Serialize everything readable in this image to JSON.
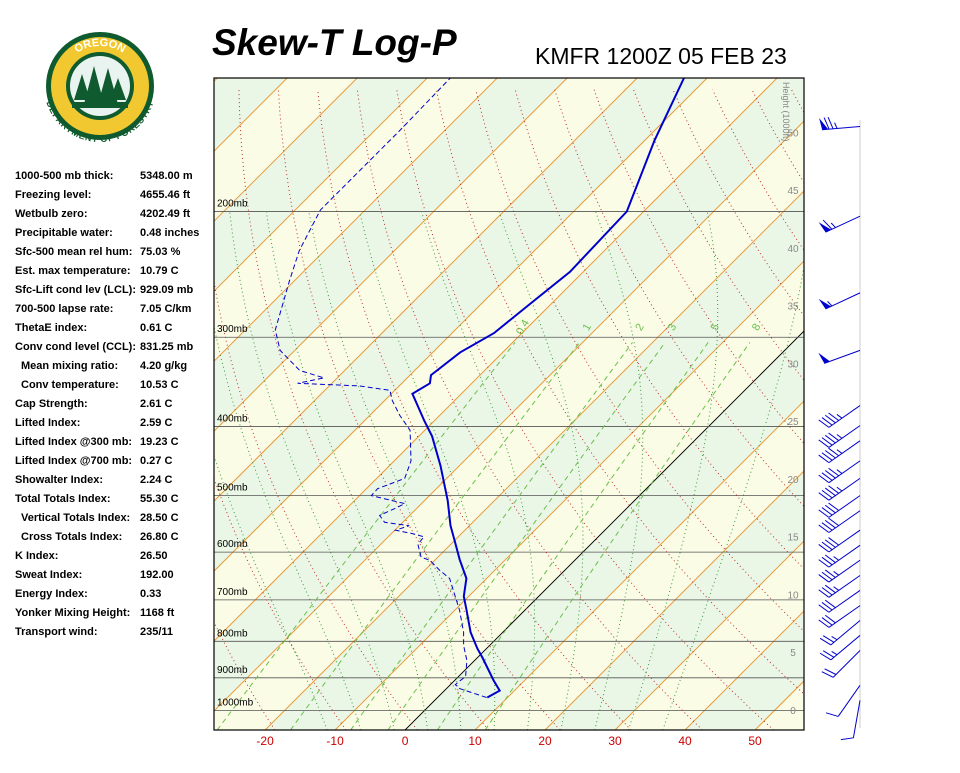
{
  "logo": {
    "top": "OREGON",
    "bottom": "DEPARTMENT OF FORESTRY"
  },
  "stats": [
    {
      "label": "1000-500 mb thick:",
      "value": "5348.00 m"
    },
    {
      "label": "Freezing level:",
      "value": "4655.46 ft"
    },
    {
      "label": "Wetbulb zero:",
      "value": "4202.49 ft"
    },
    {
      "label": "Precipitable water:",
      "value": "0.48 inches"
    },
    {
      "label": "Sfc-500 mean rel hum:",
      "value": "75.03 %"
    },
    {
      "label": "Est. max temperature:",
      "value": "10.79 C"
    },
    {
      "label": "Sfc-Lift cond lev (LCL):",
      "value": "929.09 mb"
    },
    {
      "label": "700-500 lapse rate:",
      "value": "7.05 C/km"
    },
    {
      "label": "ThetaE index:",
      "value": "0.61 C"
    },
    {
      "label": "Conv cond level (CCL):",
      "value": "831.25 mb"
    },
    {
      "label": "Mean mixing ratio:",
      "value": "4.20 g/kg",
      "sub": true
    },
    {
      "label": "Conv temperature:",
      "value": "10.53 C",
      "sub": true
    },
    {
      "label": "Cap Strength:",
      "value": "2.61 C"
    },
    {
      "label": "Lifted Index:",
      "value": "2.59 C"
    },
    {
      "label": "Lifted Index @300 mb:",
      "value": "19.23 C"
    },
    {
      "label": "Lifted Index @700 mb:",
      "value": "0.27 C"
    },
    {
      "label": "Showalter Index:",
      "value": "2.24 C"
    },
    {
      "label": "Total Totals Index:",
      "value": "55.30 C"
    },
    {
      "label": "Vertical Totals Index:",
      "value": "28.50 C",
      "sub": true
    },
    {
      "label": "Cross Totals Index:",
      "value": "26.80 C",
      "sub": true
    },
    {
      "label": "K Index:",
      "value": "26.50"
    },
    {
      "label": "Sweat Index:",
      "value": "192.00"
    },
    {
      "label": "Energy Index:",
      "value": "0.33"
    },
    {
      "label": "Yonker Mixing Height:",
      "value": "1168 ft"
    },
    {
      "label": "Transport wind:",
      "value": "235/11"
    }
  ],
  "chart_data": {
    "type": "skewt",
    "title": "Skew-T Log-P",
    "subtitle": "KMFR 1200Z 05 FEB 23",
    "xlim": [
      -27.3,
      57
    ],
    "xticks": [
      -20,
      -10,
      0,
      10,
      20,
      30,
      40,
      50
    ],
    "ylim": [
      1065,
      130
    ],
    "y_scale": "log",
    "yticks": [
      {
        "value": 200,
        "label": "200mb"
      },
      {
        "value": 300,
        "label": "300mb"
      },
      {
        "value": 400,
        "label": "400mb"
      },
      {
        "value": 500,
        "label": "500mb"
      },
      {
        "value": 600,
        "label": "600mb"
      },
      {
        "value": 700,
        "label": "700mb"
      },
      {
        "value": 800,
        "label": "800mb"
      },
      {
        "value": 900,
        "label": "900mb"
      },
      {
        "value": 1000,
        "label": "1000mb"
      }
    ],
    "y2label": "Height (1000ft)",
    "y2lim": [
      -1.73,
      54.7
    ],
    "y2ticks": [
      0,
      5,
      10,
      15,
      20,
      25,
      30,
      35,
      40,
      45,
      50
    ],
    "mixing_ratios": [
      0.4,
      1,
      2,
      3,
      5,
      8
    ],
    "series": [
      {
        "color": "#0000cc",
        "dashed": false,
        "pressure": [
          959,
          938,
          908,
          843,
          819,
          777,
          724,
          692,
          653,
          614,
          578,
          551,
          508,
          454,
          413,
          393,
          360,
          348,
          339,
          315,
          296,
          266,
          243,
          200,
          159,
          130
        ],
        "temperature": [
          7.1,
          7.9,
          5.6,
          0.7,
          -1.3,
          -4.6,
          -8.3,
          -10.7,
          -12.9,
          -16.6,
          -20.0,
          -22.7,
          -26.7,
          -32.7,
          -38.1,
          -41.4,
          -47.0,
          -46.0,
          -47.0,
          -46.1,
          -44.0,
          -42.9,
          -41.9,
          -42.4,
          -48.6,
          -53.3
        ]
      },
      {
        "color": "#0000cc",
        "dashed": true,
        "pressure": [
          959,
          932,
          920,
          896,
          851,
          811,
          777,
          724,
          690,
          653,
          636,
          616,
          610,
          585,
          571,
          565,
          559,
          551,
          545,
          533,
          521,
          513,
          500,
          489,
          473,
          447,
          405,
          386,
          368,
          356,
          351,
          348,
          342,
          334,
          313,
          293,
          250,
          227,
          199,
          175,
          154,
          130
        ],
        "temperature": [
          7.0,
          1.9,
          0.7,
          1.0,
          -1.1,
          -3.7,
          -5.6,
          -9.3,
          -12.1,
          -15.3,
          -17.9,
          -20.7,
          -22.4,
          -24.7,
          -24.9,
          -27.1,
          -29.9,
          -28.6,
          -32.6,
          -34.3,
          -33.1,
          -32.4,
          -38.3,
          -38.4,
          -36.0,
          -37.6,
          -42.1,
          -45.7,
          -48.9,
          -50.7,
          -55.7,
          -64.9,
          -61.9,
          -66.4,
          -72.1,
          -75.7,
          -80.7,
          -83.6,
          -86.4,
          -86.4,
          -86.4,
          -86.7
        ]
      }
    ],
    "winds": {
      "pressure": [
        152,
        203,
        260,
        313,
        374,
        399,
        419,
        447,
        473,
        500,
        525,
        559,
        587,
        616,
        647,
        679,
        713,
        748,
        785,
        824,
        922,
        968
      ],
      "direction": [
        265,
        245,
        245,
        250,
        235,
        235,
        235,
        235,
        235,
        235,
        235,
        235,
        235,
        235,
        235,
        235,
        235,
        230,
        230,
        225,
        215,
        190
      ],
      "speed": [
        75,
        65,
        55,
        50,
        45,
        45,
        45,
        45,
        45,
        40,
        40,
        40,
        35,
        35,
        35,
        30,
        30,
        25,
        25,
        20,
        10,
        10
      ]
    }
  }
}
